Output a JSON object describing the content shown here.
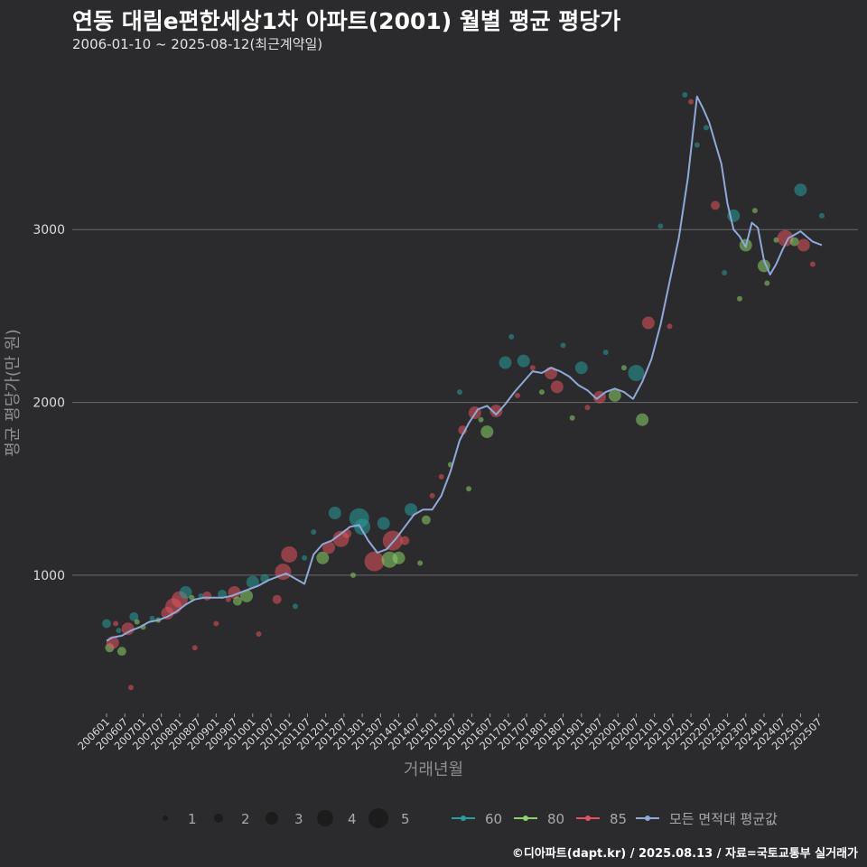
{
  "header": {
    "title": "연동 대림e편한세상1차 아파트(2001) 월별 평균 평당가",
    "subtitle": "2006-01-10 ~ 2025-08-12(최근계약일)",
    "caption": "©디아파트(dapt.kr) / 2025.08.13 / 자료=국토교통부 실거래가"
  },
  "chart_data": {
    "type": "scatter",
    "xlabel": "거래년월",
    "ylabel": "평균 평당가(만 원)",
    "ylim": [
      200,
      3900
    ],
    "yticks": [
      1000,
      2000,
      3000
    ],
    "x_start": "2006-01",
    "x_end": "2025-08",
    "xtick_labels": [
      "200601",
      "200607",
      "200701",
      "200707",
      "200801",
      "200807",
      "200901",
      "200907",
      "201001",
      "201007",
      "201101",
      "201107",
      "201201",
      "201207",
      "201301",
      "201307",
      "201401",
      "201407",
      "201501",
      "201507",
      "201601",
      "201607",
      "201701",
      "201707",
      "201801",
      "201807",
      "201901",
      "201907",
      "202001",
      "202007",
      "202101",
      "202107",
      "202201",
      "202207",
      "202301",
      "202307",
      "202401",
      "202407",
      "202501",
      "202507"
    ],
    "size_legend": [
      1,
      2,
      3,
      4,
      5
    ],
    "colors": {
      "60": "#2a9d9c",
      "80": "#8bd26a",
      "85": "#e2535f",
      "avg": "#8fa9d9"
    },
    "series_legend": [
      {
        "key": "60",
        "label": "60"
      },
      {
        "key": "80",
        "label": "80"
      },
      {
        "key": "85",
        "label": "85"
      },
      {
        "key": "avg",
        "label": "모든 면적대 평균값"
      }
    ],
    "average_line": [
      [
        "2006-01",
        620
      ],
      [
        "2006-03",
        640
      ],
      [
        "2006-06",
        650
      ],
      [
        "2006-09",
        680
      ],
      [
        "2006-12",
        700
      ],
      [
        "2007-03",
        730
      ],
      [
        "2007-06",
        740
      ],
      [
        "2007-09",
        760
      ],
      [
        "2007-12",
        790
      ],
      [
        "2008-03",
        830
      ],
      [
        "2008-06",
        860
      ],
      [
        "2008-09",
        870
      ],
      [
        "2008-12",
        870
      ],
      [
        "2009-03",
        870
      ],
      [
        "2009-06",
        880
      ],
      [
        "2009-09",
        900
      ],
      [
        "2009-12",
        920
      ],
      [
        "2010-03",
        940
      ],
      [
        "2010-06",
        970
      ],
      [
        "2010-09",
        990
      ],
      [
        "2010-12",
        1010
      ],
      [
        "2011-03",
        980
      ],
      [
        "2011-06",
        950
      ],
      [
        "2011-09",
        1120
      ],
      [
        "2011-12",
        1180
      ],
      [
        "2012-03",
        1200
      ],
      [
        "2012-06",
        1240
      ],
      [
        "2012-09",
        1280
      ],
      [
        "2012-12",
        1290
      ],
      [
        "2013-03",
        1200
      ],
      [
        "2013-06",
        1130
      ],
      [
        "2013-09",
        1150
      ],
      [
        "2013-12",
        1210
      ],
      [
        "2014-03",
        1280
      ],
      [
        "2014-06",
        1350
      ],
      [
        "2014-09",
        1380
      ],
      [
        "2014-12",
        1380
      ],
      [
        "2015-03",
        1460
      ],
      [
        "2015-06",
        1600
      ],
      [
        "2015-09",
        1780
      ],
      [
        "2015-12",
        1880
      ],
      [
        "2016-03",
        1960
      ],
      [
        "2016-06",
        1980
      ],
      [
        "2016-09",
        1930
      ],
      [
        "2016-12",
        1990
      ],
      [
        "2017-03",
        2060
      ],
      [
        "2017-06",
        2120
      ],
      [
        "2017-09",
        2180
      ],
      [
        "2017-12",
        2170
      ],
      [
        "2018-03",
        2200
      ],
      [
        "2018-06",
        2180
      ],
      [
        "2018-09",
        2150
      ],
      [
        "2018-12",
        2100
      ],
      [
        "2019-03",
        2070
      ],
      [
        "2019-06",
        2020
      ],
      [
        "2019-09",
        2060
      ],
      [
        "2019-12",
        2080
      ],
      [
        "2020-03",
        2060
      ],
      [
        "2020-06",
        2020
      ],
      [
        "2020-09",
        2120
      ],
      [
        "2020-12",
        2250
      ],
      [
        "2021-03",
        2450
      ],
      [
        "2021-06",
        2700
      ],
      [
        "2021-09",
        2950
      ],
      [
        "2021-12",
        3300
      ],
      [
        "2022-03",
        3770
      ],
      [
        "2022-05",
        3700
      ],
      [
        "2022-07",
        3620
      ],
      [
        "2022-09",
        3500
      ],
      [
        "2022-11",
        3380
      ],
      [
        "2023-01",
        3150
      ],
      [
        "2023-03",
        3000
      ],
      [
        "2023-05",
        2960
      ],
      [
        "2023-07",
        2900
      ],
      [
        "2023-09",
        3040
      ],
      [
        "2023-11",
        3010
      ],
      [
        "2024-01",
        2820
      ],
      [
        "2024-03",
        2740
      ],
      [
        "2024-05",
        2800
      ],
      [
        "2024-07",
        2880
      ],
      [
        "2024-09",
        2950
      ],
      [
        "2024-11",
        2970
      ],
      [
        "2025-01",
        2990
      ],
      [
        "2025-03",
        2960
      ],
      [
        "2025-05",
        2930
      ],
      [
        "2025-08",
        2910
      ]
    ],
    "points": [
      {
        "x": "2006-01",
        "y": 720,
        "s": 60,
        "n": 2
      },
      {
        "x": "2006-02",
        "y": 580,
        "s": 80,
        "n": 2
      },
      {
        "x": "2006-03",
        "y": 610,
        "s": 85,
        "n": 3
      },
      {
        "x": "2006-04",
        "y": 720,
        "s": 85,
        "n": 1
      },
      {
        "x": "2006-05",
        "y": 680,
        "s": 60,
        "n": 1
      },
      {
        "x": "2006-06",
        "y": 560,
        "s": 80,
        "n": 2
      },
      {
        "x": "2006-08",
        "y": 690,
        "s": 85,
        "n": 3
      },
      {
        "x": "2006-09",
        "y": 350,
        "s": 85,
        "n": 1
      },
      {
        "x": "2006-10",
        "y": 760,
        "s": 60,
        "n": 2
      },
      {
        "x": "2006-11",
        "y": 730,
        "s": 80,
        "n": 1
      },
      {
        "x": "2007-01",
        "y": 700,
        "s": 80,
        "n": 1
      },
      {
        "x": "2007-04",
        "y": 750,
        "s": 60,
        "n": 1
      },
      {
        "x": "2007-06",
        "y": 740,
        "s": 80,
        "n": 1
      },
      {
        "x": "2007-09",
        "y": 780,
        "s": 85,
        "n": 3
      },
      {
        "x": "2007-11",
        "y": 820,
        "s": 85,
        "n": 4
      },
      {
        "x": "2008-01",
        "y": 860,
        "s": 85,
        "n": 4
      },
      {
        "x": "2008-03",
        "y": 900,
        "s": 60,
        "n": 3
      },
      {
        "x": "2008-05",
        "y": 870,
        "s": 80,
        "n": 1
      },
      {
        "x": "2008-06",
        "y": 580,
        "s": 85,
        "n": 1
      },
      {
        "x": "2008-08",
        "y": 880,
        "s": 60,
        "n": 1
      },
      {
        "x": "2008-10",
        "y": 880,
        "s": 85,
        "n": 2
      },
      {
        "x": "2009-01",
        "y": 720,
        "s": 85,
        "n": 1
      },
      {
        "x": "2009-03",
        "y": 890,
        "s": 60,
        "n": 2
      },
      {
        "x": "2009-05",
        "y": 860,
        "s": 85,
        "n": 1
      },
      {
        "x": "2009-07",
        "y": 900,
        "s": 85,
        "n": 3
      },
      {
        "x": "2009-08",
        "y": 850,
        "s": 80,
        "n": 2
      },
      {
        "x": "2009-11",
        "y": 880,
        "s": 80,
        "n": 3
      },
      {
        "x": "2010-01",
        "y": 960,
        "s": 60,
        "n": 3
      },
      {
        "x": "2010-03",
        "y": 660,
        "s": 85,
        "n": 1
      },
      {
        "x": "2010-05",
        "y": 980,
        "s": 60,
        "n": 2
      },
      {
        "x": "2010-09",
        "y": 860,
        "s": 85,
        "n": 2
      },
      {
        "x": "2010-11",
        "y": 1020,
        "s": 85,
        "n": 4
      },
      {
        "x": "2011-01",
        "y": 1120,
        "s": 85,
        "n": 4
      },
      {
        "x": "2011-03",
        "y": 820,
        "s": 60,
        "n": 1
      },
      {
        "x": "2011-06",
        "y": 1100,
        "s": 60,
        "n": 1
      },
      {
        "x": "2011-09",
        "y": 1250,
        "s": 60,
        "n": 1
      },
      {
        "x": "2011-12",
        "y": 1100,
        "s": 80,
        "n": 3
      },
      {
        "x": "2012-02",
        "y": 1160,
        "s": 85,
        "n": 3
      },
      {
        "x": "2012-04",
        "y": 1360,
        "s": 60,
        "n": 3
      },
      {
        "x": "2012-06",
        "y": 1210,
        "s": 85,
        "n": 4
      },
      {
        "x": "2012-08",
        "y": 1240,
        "s": 85,
        "n": 2
      },
      {
        "x": "2012-10",
        "y": 1000,
        "s": 80,
        "n": 1
      },
      {
        "x": "2012-12",
        "y": 1330,
        "s": 60,
        "n": 5
      },
      {
        "x": "2013-01",
        "y": 1280,
        "s": 60,
        "n": 4
      },
      {
        "x": "2013-05",
        "y": 1080,
        "s": 85,
        "n": 5
      },
      {
        "x": "2013-08",
        "y": 1300,
        "s": 60,
        "n": 3
      },
      {
        "x": "2013-10",
        "y": 1090,
        "s": 80,
        "n": 4
      },
      {
        "x": "2013-11",
        "y": 1200,
        "s": 85,
        "n": 5
      },
      {
        "x": "2014-01",
        "y": 1100,
        "s": 80,
        "n": 3
      },
      {
        "x": "2014-03",
        "y": 1200,
        "s": 85,
        "n": 2
      },
      {
        "x": "2014-05",
        "y": 1380,
        "s": 60,
        "n": 3
      },
      {
        "x": "2014-08",
        "y": 1070,
        "s": 80,
        "n": 1
      },
      {
        "x": "2014-10",
        "y": 1320,
        "s": 80,
        "n": 2
      },
      {
        "x": "2014-12",
        "y": 1460,
        "s": 85,
        "n": 1
      },
      {
        "x": "2015-03",
        "y": 1570,
        "s": 85,
        "n": 1
      },
      {
        "x": "2015-06",
        "y": 1640,
        "s": 80,
        "n": 1
      },
      {
        "x": "2015-09",
        "y": 2060,
        "s": 60,
        "n": 1
      },
      {
        "x": "2015-10",
        "y": 1840,
        "s": 85,
        "n": 2
      },
      {
        "x": "2015-12",
        "y": 1500,
        "s": 80,
        "n": 1
      },
      {
        "x": "2016-02",
        "y": 1940,
        "s": 85,
        "n": 3
      },
      {
        "x": "2016-04",
        "y": 1900,
        "s": 80,
        "n": 1
      },
      {
        "x": "2016-06",
        "y": 1830,
        "s": 80,
        "n": 3
      },
      {
        "x": "2016-09",
        "y": 1950,
        "s": 85,
        "n": 3
      },
      {
        "x": "2016-12",
        "y": 2230,
        "s": 60,
        "n": 3
      },
      {
        "x": "2017-02",
        "y": 2380,
        "s": 60,
        "n": 1
      },
      {
        "x": "2017-04",
        "y": 2040,
        "s": 85,
        "n": 1
      },
      {
        "x": "2017-06",
        "y": 2240,
        "s": 60,
        "n": 3
      },
      {
        "x": "2017-09",
        "y": 2200,
        "s": 85,
        "n": 1
      },
      {
        "x": "2017-12",
        "y": 2060,
        "s": 80,
        "n": 1
      },
      {
        "x": "2018-03",
        "y": 2170,
        "s": 85,
        "n": 3
      },
      {
        "x": "2018-05",
        "y": 2090,
        "s": 85,
        "n": 3
      },
      {
        "x": "2018-07",
        "y": 2330,
        "s": 60,
        "n": 1
      },
      {
        "x": "2018-10",
        "y": 1910,
        "s": 80,
        "n": 1
      },
      {
        "x": "2019-01",
        "y": 2200,
        "s": 60,
        "n": 3
      },
      {
        "x": "2019-03",
        "y": 1970,
        "s": 85,
        "n": 1
      },
      {
        "x": "2019-07",
        "y": 2030,
        "s": 85,
        "n": 3
      },
      {
        "x": "2019-09",
        "y": 2290,
        "s": 60,
        "n": 1
      },
      {
        "x": "2019-12",
        "y": 2040,
        "s": 80,
        "n": 3
      },
      {
        "x": "2020-03",
        "y": 2200,
        "s": 80,
        "n": 1
      },
      {
        "x": "2020-07",
        "y": 2170,
        "s": 60,
        "n": 4
      },
      {
        "x": "2020-09",
        "y": 1900,
        "s": 80,
        "n": 3
      },
      {
        "x": "2020-11",
        "y": 2460,
        "s": 85,
        "n": 3
      },
      {
        "x": "2021-03",
        "y": 3020,
        "s": 60,
        "n": 1
      },
      {
        "x": "2021-06",
        "y": 2440,
        "s": 85,
        "n": 1
      },
      {
        "x": "2021-11",
        "y": 3780,
        "s": 60,
        "n": 1
      },
      {
        "x": "2022-01",
        "y": 3740,
        "s": 85,
        "n": 1
      },
      {
        "x": "2022-03",
        "y": 3490,
        "s": 60,
        "n": 1
      },
      {
        "x": "2022-06",
        "y": 3590,
        "s": 60,
        "n": 1
      },
      {
        "x": "2022-09",
        "y": 3140,
        "s": 85,
        "n": 2
      },
      {
        "x": "2022-12",
        "y": 2750,
        "s": 60,
        "n": 1
      },
      {
        "x": "2023-03",
        "y": 3080,
        "s": 60,
        "n": 3
      },
      {
        "x": "2023-05",
        "y": 2600,
        "s": 80,
        "n": 1
      },
      {
        "x": "2023-07",
        "y": 2910,
        "s": 80,
        "n": 3
      },
      {
        "x": "2023-10",
        "y": 3110,
        "s": 80,
        "n": 1
      },
      {
        "x": "2024-01",
        "y": 2790,
        "s": 80,
        "n": 3
      },
      {
        "x": "2024-02",
        "y": 2690,
        "s": 80,
        "n": 1
      },
      {
        "x": "2024-05",
        "y": 2940,
        "s": 80,
        "n": 1
      },
      {
        "x": "2024-08",
        "y": 2950,
        "s": 85,
        "n": 4
      },
      {
        "x": "2024-11",
        "y": 2930,
        "s": 80,
        "n": 2
      },
      {
        "x": "2025-01",
        "y": 3230,
        "s": 60,
        "n": 3
      },
      {
        "x": "2025-02",
        "y": 2910,
        "s": 85,
        "n": 3
      },
      {
        "x": "2025-05",
        "y": 2800,
        "s": 85,
        "n": 1
      },
      {
        "x": "2025-08",
        "y": 3080,
        "s": 60,
        "n": 1
      }
    ]
  }
}
